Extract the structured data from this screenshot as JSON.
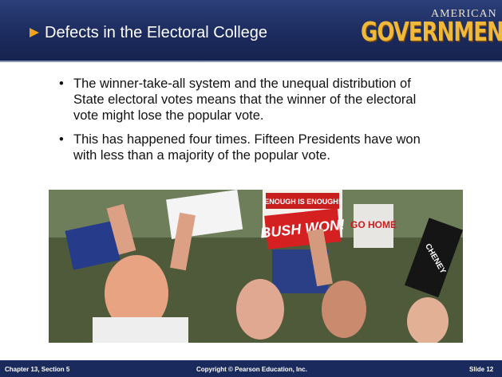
{
  "header": {
    "title": "Defects in the Electoral College",
    "logo": {
      "top": "AMERICAN",
      "main": "GOVERNMENT"
    }
  },
  "bullets": [
    "The winner-take-all system and the unequal distribution of State electoral votes means that the winner of the electoral vote might lose the popular vote.",
    "This has happened four times. Fifteen Presidents have won with less than a majority of the popular vote."
  ],
  "photo": {
    "signs": [
      "ENOUGH IS ENOUGH!",
      "BUSH WON!",
      "GO HOME",
      "CHENEY"
    ]
  },
  "footer": {
    "chapter": "Chapter 13, Section 5",
    "copyright": "Copyright © Pearson Education, Inc.",
    "slide": "Slide 12"
  }
}
